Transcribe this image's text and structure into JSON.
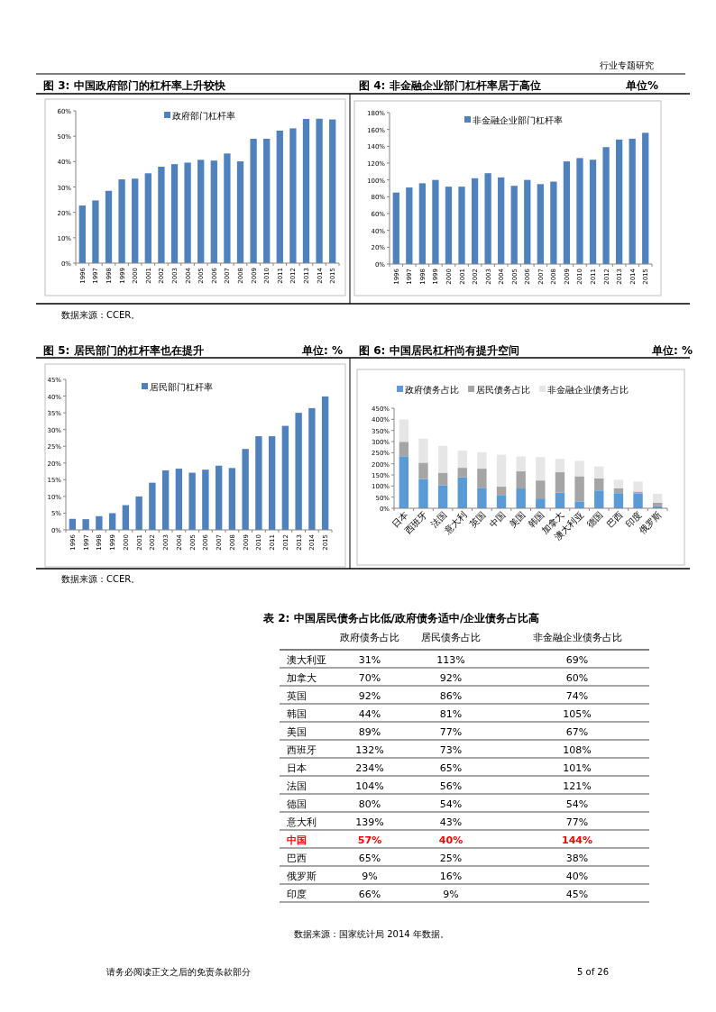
{
  "chart_data": [
    {
      "type": "bar",
      "title": "图 3: 中国政府部门的杠杆率上升较快",
      "annotations": [
        "行业专题研究",
        "数据来源：CCER。"
      ],
      "categories": [
        "1996",
        "1997",
        "1998",
        "1999",
        "2000",
        "2001",
        "2002",
        "2003",
        "2004",
        "2005",
        "2006",
        "2007",
        "2008",
        "2009",
        "2010",
        "2011",
        "2012",
        "2013",
        "2014",
        "2015"
      ],
      "series": [
        {
          "name": "政府部门杠杆率",
          "color": "#4f81bd",
          "values": [
            22.7,
            24.7,
            28.5,
            33,
            33.3,
            35.4,
            38,
            39,
            39.6,
            40.7,
            40.4,
            43.2,
            40.1,
            49,
            49,
            52.2,
            53.1,
            56.8,
            56.9,
            56.6
          ]
        }
      ],
      "ylim": [
        0,
        60
      ],
      "yticks": [
        {
          "value": 0,
          "label": "0%"
        },
        {
          "value": 10,
          "label": "10%"
        },
        {
          "value": 20,
          "label": "20%"
        },
        {
          "value": 30,
          "label": "30%"
        },
        {
          "value": 40,
          "label": "40%"
        },
        {
          "value": 50,
          "label": "50%"
        },
        {
          "value": 60,
          "label": "60%"
        }
      ],
      "legend": "top"
    },
    {
      "type": "bar",
      "title": "图 4: 非金融企业部门杠杆率居于高位",
      "subtitle": "单位%",
      "categories": [
        "1996",
        "1997",
        "1998",
        "1999",
        "2000",
        "2001",
        "2002",
        "2003",
        "2004",
        "2005",
        "2006",
        "2007",
        "2008",
        "2009",
        "2010",
        "2011",
        "2012",
        "2013",
        "2014",
        "2015"
      ],
      "series": [
        {
          "name": "非金融企业部门杠杆率",
          "color": "#4f81bd",
          "values": [
            85,
            91,
            96,
            100,
            92,
            92,
            102,
            108,
            103,
            93,
            100,
            95,
            98,
            122,
            126,
            124,
            139,
            148,
            149,
            156
          ]
        }
      ],
      "ylim": [
        0,
        180
      ],
      "yticks": [
        {
          "value": 0,
          "label": "0%"
        },
        {
          "value": 20,
          "label": "20%"
        },
        {
          "value": 40,
          "label": "40%"
        },
        {
          "value": 60,
          "label": "60%"
        },
        {
          "value": 80,
          "label": "80%"
        },
        {
          "value": 100,
          "label": "100%"
        },
        {
          "value": 120,
          "label": "120%"
        },
        {
          "value": 140,
          "label": "140%"
        },
        {
          "value": 160,
          "label": "160%"
        },
        {
          "value": 180,
          "label": "180%"
        }
      ],
      "legend": "top"
    },
    {
      "type": "bar",
      "title": "图 5: 居民部门的杠杆率也在提升",
      "subtitle": "单位: %",
      "annotations": [
        "数据来源：CCER。"
      ],
      "categories": [
        "1996",
        "1997",
        "1998",
        "1999",
        "2000",
        "2001",
        "2002",
        "2003",
        "2004",
        "2005",
        "2006",
        "2007",
        "2008",
        "2009",
        "2010",
        "2011",
        "2012",
        "2013",
        "2014",
        "2015"
      ],
      "series": [
        {
          "name": "居民部门杠杆率",
          "color": "#4f81bd",
          "values": [
            3.3,
            3.2,
            4.1,
            5,
            7.4,
            10,
            14.1,
            17.8,
            18.3,
            17.1,
            18,
            19.2,
            18.5,
            24.2,
            28,
            28,
            31.1,
            35,
            36.4,
            39.9
          ]
        }
      ],
      "ylim": [
        0,
        45
      ],
      "yticks": [
        {
          "value": 0,
          "label": "0%"
        },
        {
          "value": 5,
          "label": "5%"
        },
        {
          "value": 10,
          "label": "10%"
        },
        {
          "value": 15,
          "label": "15%"
        },
        {
          "value": 20,
          "label": "20%"
        },
        {
          "value": 25,
          "label": "25%"
        },
        {
          "value": 30,
          "label": "30%"
        },
        {
          "value": 35,
          "label": "35%"
        },
        {
          "value": 40,
          "label": "40%"
        },
        {
          "value": 45,
          "label": "45%"
        }
      ],
      "legend": "top"
    },
    {
      "type": "bar",
      "title": "图 6: 中国居民杠杆尚有提升空间",
      "subtitle": "单位: %",
      "stacked": true,
      "categories": [
        "日本",
        "西班牙",
        "法国",
        "意大利",
        "英国",
        "中国",
        "美国",
        "韩国",
        "加拿大",
        "澳大利亚",
        "德国",
        "巴西",
        "印度",
        "俄罗斯"
      ],
      "series": [
        {
          "name": "政府债务占比",
          "color": "#5b9bd5",
          "values": [
            234,
            132,
            104,
            139,
            92,
            57,
            89,
            44,
            70,
            31,
            80,
            65,
            66,
            9
          ]
        },
        {
          "name": "居民债务占比",
          "color": "#a5a5a5",
          "values": [
            65,
            73,
            56,
            43,
            86,
            40,
            77,
            81,
            92,
            113,
            54,
            25,
            9,
            16
          ]
        },
        {
          "name": "非金融企业债务占比",
          "color": "#e7e6e6",
          "values": [
            101,
            108,
            121,
            77,
            74,
            144,
            67,
            105,
            60,
            69,
            54,
            38,
            45,
            40
          ]
        }
      ],
      "ylim": [
        0,
        450
      ],
      "yticks": [
        {
          "value": 0,
          "label": "0%"
        },
        {
          "value": 50,
          "label": "50%"
        },
        {
          "value": 100,
          "label": "100%"
        },
        {
          "value": 150,
          "label": "150%"
        },
        {
          "value": 200,
          "label": "200%"
        },
        {
          "value": 250,
          "label": "250%"
        },
        {
          "value": 300,
          "label": "300%"
        },
        {
          "value": 350,
          "label": "350%"
        },
        {
          "value": 400,
          "label": "400%"
        },
        {
          "value": 450,
          "label": "450%"
        }
      ],
      "legend": "top"
    },
    {
      "type": "other",
      "title": "表 2: 中国居民债务占比低/政府债务适中/企业债务占比高",
      "annotations": [
        "数据来源：国家统计局 2014 年数据。",
        "请务必阅读正文之后的免责条款部分",
        "5 of 26"
      ],
      "categories": [
        "政府债务占比",
        "居民债务占比",
        "非金融企业债务占比"
      ],
      "y_categories": [
        "澳大利亚",
        "加拿大",
        "英国",
        "韩国",
        "美国",
        "西班牙",
        "日本",
        "法国",
        "德国",
        "意大利",
        "中国",
        "巴西",
        "俄罗斯",
        "印度"
      ],
      "cell_labels": [
        [
          "31%",
          "113%",
          "69%"
        ],
        [
          "70%",
          "92%",
          "60%"
        ],
        [
          "92%",
          "86%",
          "74%"
        ],
        [
          "44%",
          "81%",
          "105%"
        ],
        [
          "89%",
          "77%",
          "67%"
        ],
        [
          "132%",
          "73%",
          "108%"
        ],
        [
          "234%",
          "65%",
          "101%"
        ],
        [
          "104%",
          "56%",
          "121%"
        ],
        [
          "80%",
          "54%",
          "54%"
        ],
        [
          "139%",
          "43%",
          "77%"
        ],
        [
          "57%",
          "40%",
          "144%"
        ],
        [
          "65%",
          "25%",
          "38%"
        ],
        [
          "9%",
          "16%",
          "40%"
        ],
        [
          "66%",
          "9%",
          "45%"
        ]
      ],
      "colors": [
        null,
        null,
        null,
        null,
        null,
        null,
        null,
        null,
        null,
        null,
        "#ff0000",
        null,
        null,
        null
      ]
    }
  ]
}
